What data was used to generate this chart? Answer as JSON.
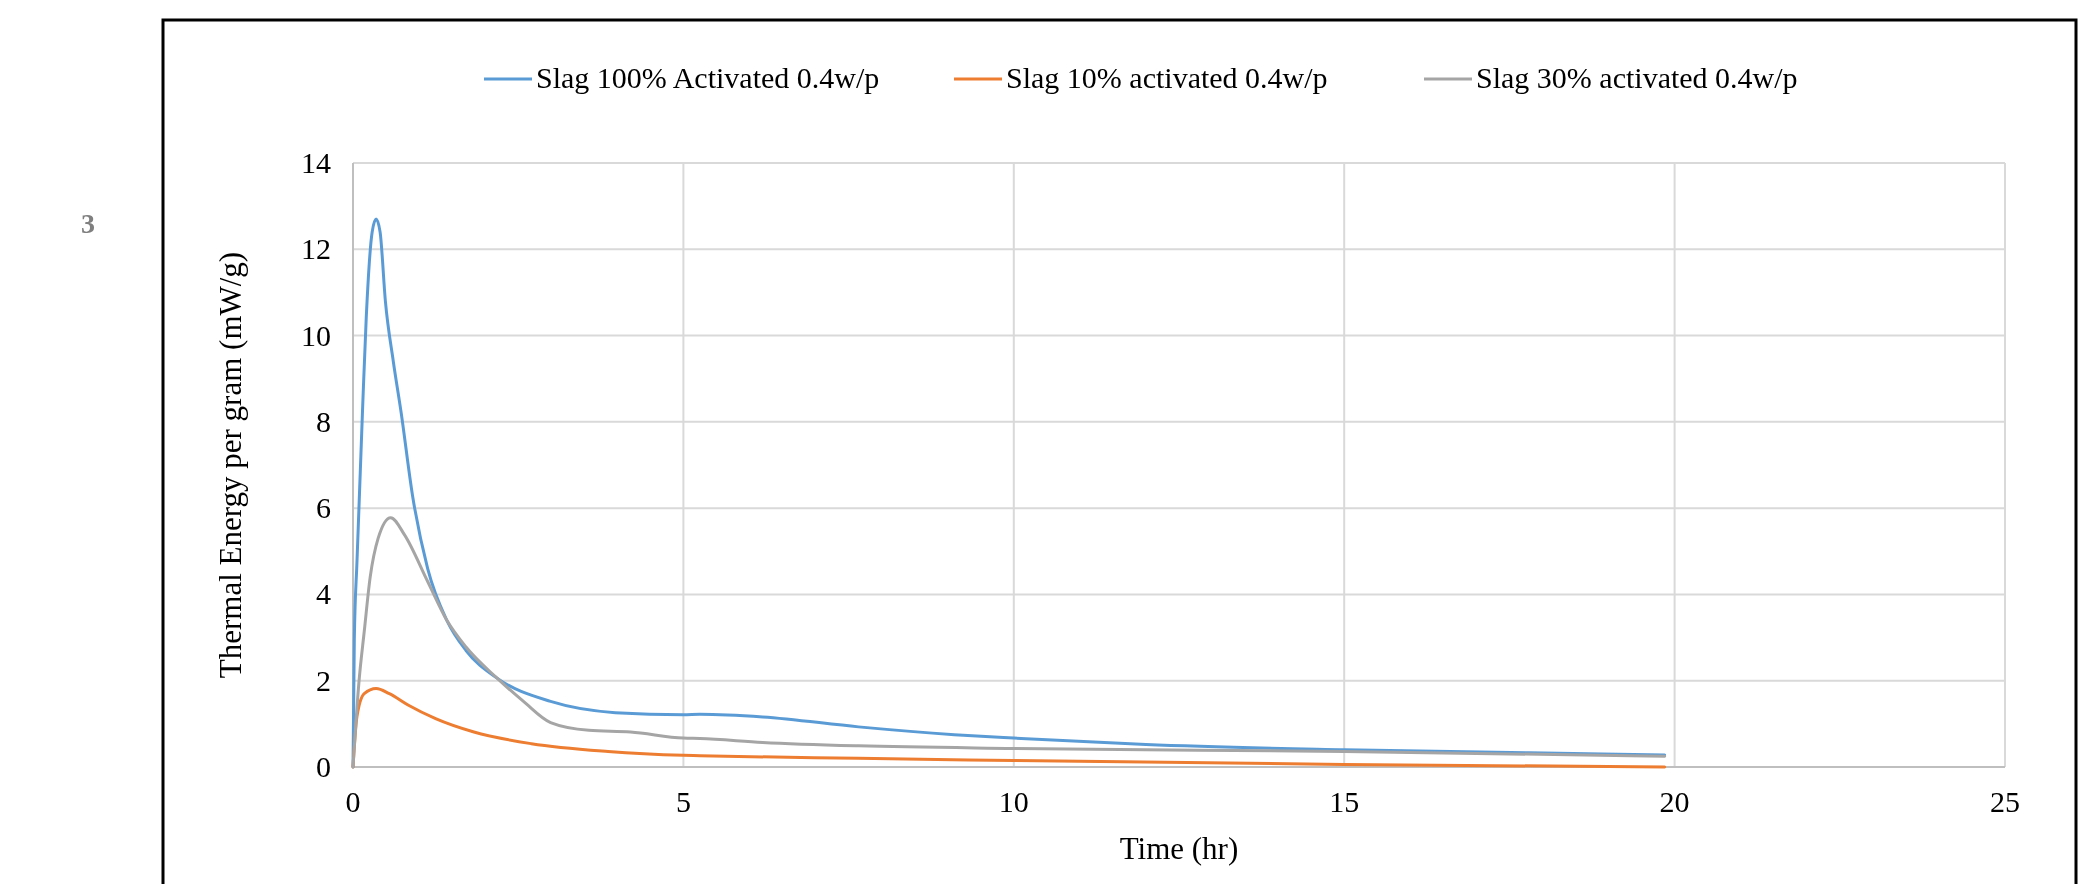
{
  "chart_data": {
    "type": "line",
    "xlabel": "Time (hr)",
    "ylabel": "Thermal Energy per gram (mW/g)",
    "xlim": [
      0,
      25
    ],
    "xticks": [
      0,
      5,
      10,
      15,
      20,
      25
    ],
    "ylim": [
      0,
      14
    ],
    "yticks": [
      0,
      2,
      4,
      6,
      8,
      10,
      12,
      14
    ],
    "grid": true,
    "legend": "top",
    "annotations": [
      "3"
    ],
    "series": [
      {
        "name": "Slag 100% Activated 0.4w/p",
        "color": "#5b9bd5",
        "x": [
          0,
          0.02,
          0.06,
          0.145,
          0.2,
          0.29,
          0.35,
          0.41,
          0.49,
          0.61,
          0.73,
          0.9,
          1.13,
          1.42,
          1.71,
          2.18,
          2.99,
          3.97,
          5,
          5.25,
          6.2,
          7.65,
          9.1,
          10,
          12,
          15,
          17.8,
          19.85
        ],
        "values": [
          0,
          2.96,
          4.75,
          8.3,
          10.4,
          12.4,
          12.7,
          12.4,
          10.8,
          9.4,
          8.2,
          6.3,
          4.6,
          3.4,
          2.7,
          2.06,
          1.52,
          1.26,
          1.21,
          1.22,
          1.16,
          0.93,
          0.75,
          0.67,
          0.52,
          0.4,
          0.33,
          0.28
        ]
      },
      {
        "name": "Slag 10% activated 0.4w/p",
        "color": "#ed7d31",
        "x": [
          0,
          0.06,
          0.17,
          0.35,
          0.55,
          0.84,
          1.25,
          1.83,
          2.7,
          3.86,
          5,
          5.25,
          7.65,
          10,
          15,
          19.85
        ],
        "values": [
          0,
          1.17,
          1.7,
          1.82,
          1.7,
          1.43,
          1.12,
          0.81,
          0.54,
          0.36,
          0.27,
          0.26,
          0.2,
          0.15,
          0.06,
          0
        ]
      },
      {
        "name": "Slag 30% activated 0.4w/p",
        "color": "#a5a5a5",
        "x": [
          0,
          0.09,
          0.17,
          0.26,
          0.38,
          0.57,
          0.78,
          1.13,
          1.42,
          1.71,
          2.18,
          2.58,
          2.99,
          3.57,
          4.2,
          5,
          5.25,
          6.2,
          7.65,
          10,
          15,
          19.85
        ],
        "values": [
          0,
          1.97,
          3.14,
          4.4,
          5.3,
          5.78,
          5.38,
          4.3,
          3.4,
          2.78,
          2.06,
          1.52,
          1.03,
          0.85,
          0.81,
          0.67,
          0.66,
          0.57,
          0.49,
          0.43,
          0.36,
          0.25
        ]
      }
    ]
  }
}
